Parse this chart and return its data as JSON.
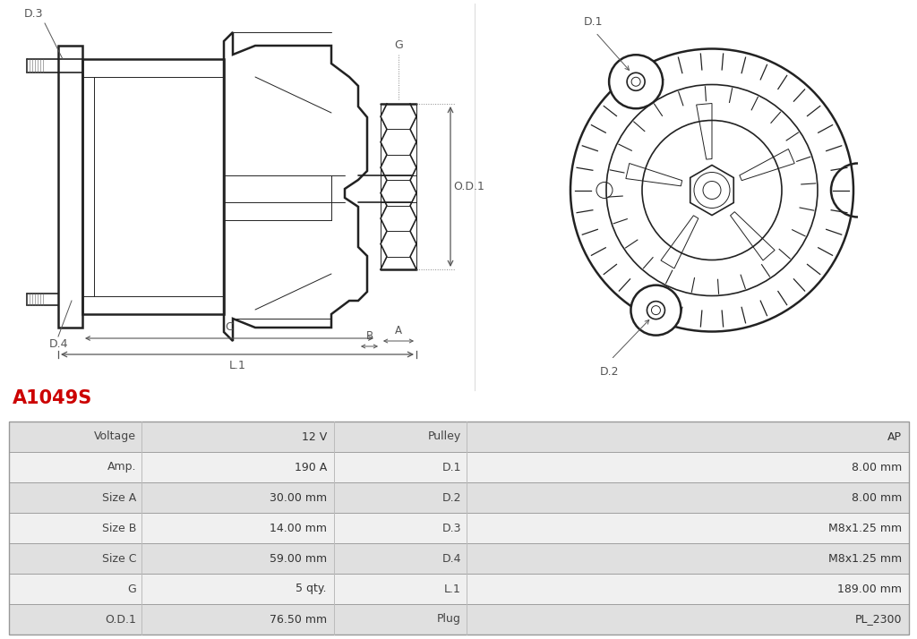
{
  "title": "A1049S",
  "title_color": "#cc0000",
  "bg_color": "#ffffff",
  "table_rows": [
    [
      "Voltage",
      "12 V",
      "Pulley",
      "AP"
    ],
    [
      "Amp.",
      "190 A",
      "D.1",
      "8.00 mm"
    ],
    [
      "Size A",
      "30.00 mm",
      "D.2",
      "8.00 mm"
    ],
    [
      "Size B",
      "14.00 mm",
      "D.3",
      "M8x1.25 mm"
    ],
    [
      "Size C",
      "59.00 mm",
      "D.4",
      "M8x1.25 mm"
    ],
    [
      "G",
      "5 qty.",
      "L.1",
      "189.00 mm"
    ],
    [
      "O.D.1",
      "76.50 mm",
      "Plug",
      "PL_2300"
    ]
  ],
  "row_bg_odd": "#e0e0e0",
  "row_bg_even": "#f0f0f0",
  "col_sep_color": "#bbbbbb",
  "border_color": "#999999",
  "text_color": "#333333",
  "label_color": "#444444",
  "diagram_line_color": "#222222",
  "dim_line_color": "#555555",
  "dim_dot_color": "#888888"
}
